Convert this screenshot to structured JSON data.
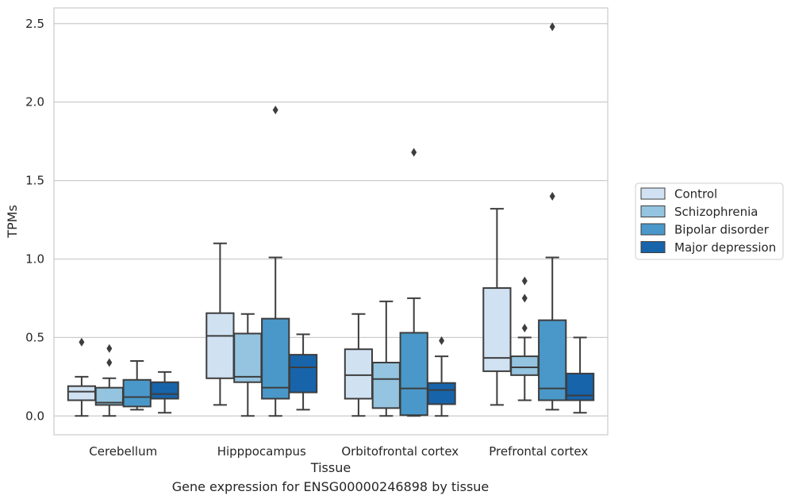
{
  "caption": "Gene expression for ENSG00000246898 by tissue",
  "chart_data": {
    "type": "box",
    "xlabel": "Tissue",
    "ylabel": "TPMs",
    "ylim": [
      -0.12,
      2.6
    ],
    "yticks": [
      0.0,
      0.5,
      1.0,
      1.5,
      2.0,
      2.5
    ],
    "grid": true,
    "legend_position": "right",
    "categories": [
      "Cerebellum",
      "Hipppocampus",
      "Orbitofrontal cortex",
      "Prefrontal cortex"
    ],
    "series": [
      {
        "name": "Control",
        "color": "#d0e1f2",
        "boxes": [
          {
            "whislo": 0.0,
            "q1": 0.1,
            "med": 0.155,
            "q3": 0.19,
            "whishi": 0.25,
            "fliers": [
              0.47
            ]
          },
          {
            "whislo": 0.07,
            "q1": 0.24,
            "med": 0.51,
            "q3": 0.655,
            "whishi": 1.1,
            "fliers": []
          },
          {
            "whislo": 0.0,
            "q1": 0.11,
            "med": 0.26,
            "q3": 0.425,
            "whishi": 0.65,
            "fliers": []
          },
          {
            "whislo": 0.07,
            "q1": 0.285,
            "med": 0.37,
            "q3": 0.815,
            "whishi": 1.32,
            "fliers": []
          }
        ]
      },
      {
        "name": "Schizophrenia",
        "color": "#94c4df",
        "boxes": [
          {
            "whislo": 0.0,
            "q1": 0.07,
            "med": 0.085,
            "q3": 0.18,
            "whishi": 0.24,
            "fliers": [
              0.34,
              0.43
            ]
          },
          {
            "whislo": 0.0,
            "q1": 0.215,
            "med": 0.25,
            "q3": 0.525,
            "whishi": 0.65,
            "fliers": []
          },
          {
            "whislo": 0.0,
            "q1": 0.05,
            "med": 0.235,
            "q3": 0.34,
            "whishi": 0.73,
            "fliers": []
          },
          {
            "whislo": 0.1,
            "q1": 0.26,
            "med": 0.31,
            "q3": 0.38,
            "whishi": 0.5,
            "fliers": [
              0.56,
              0.75,
              0.86
            ]
          }
        ]
      },
      {
        "name": "Bipolar disorder",
        "color": "#4a98c9",
        "boxes": [
          {
            "whislo": 0.04,
            "q1": 0.06,
            "med": 0.12,
            "q3": 0.23,
            "whishi": 0.35,
            "fliers": []
          },
          {
            "whislo": 0.0,
            "q1": 0.11,
            "med": 0.18,
            "q3": 0.62,
            "whishi": 1.01,
            "fliers": [
              1.95
            ]
          },
          {
            "whislo": 0.0,
            "q1": 0.005,
            "med": 0.175,
            "q3": 0.53,
            "whishi": 0.75,
            "fliers": [
              1.68
            ]
          },
          {
            "whislo": 0.04,
            "q1": 0.1,
            "med": 0.175,
            "q3": 0.61,
            "whishi": 1.01,
            "fliers": [
              1.4,
              2.48
            ]
          }
        ]
      },
      {
        "name": "Major depression",
        "color": "#1764ab",
        "boxes": [
          {
            "whislo": 0.02,
            "q1": 0.11,
            "med": 0.14,
            "q3": 0.215,
            "whishi": 0.28,
            "fliers": []
          },
          {
            "whislo": 0.04,
            "q1": 0.15,
            "med": 0.31,
            "q3": 0.39,
            "whishi": 0.52,
            "fliers": []
          },
          {
            "whislo": 0.0,
            "q1": 0.075,
            "med": 0.165,
            "q3": 0.21,
            "whishi": 0.38,
            "fliers": [
              0.48
            ]
          },
          {
            "whislo": 0.02,
            "q1": 0.1,
            "med": 0.13,
            "q3": 0.27,
            "whishi": 0.5,
            "fliers": []
          }
        ]
      }
    ]
  }
}
